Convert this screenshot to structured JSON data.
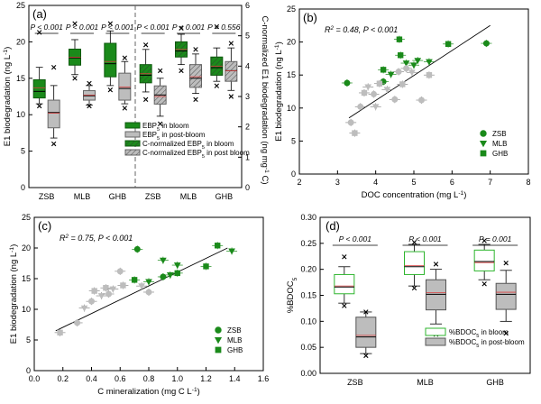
{
  "colors": {
    "green_dark": "#1a8a1a",
    "green_light": "#2db52d",
    "grey": "#bdbdbd",
    "grey_dark": "#8a8a8a",
    "median_red": "#d94040",
    "axis": "#000000"
  },
  "chart_data": [
    {
      "id": "a",
      "panel_label": "(a)",
      "type": "box",
      "ylabel": "E1 biodegradation (ng L-1)",
      "y2label": "C-normalized E1 biodegradation (ng mg-1 C)",
      "ylim": [
        0,
        25
      ],
      "yticks": [
        0,
        5,
        10,
        15,
        20,
        25
      ],
      "y2lim": [
        0,
        6
      ],
      "y2ticks": [
        0,
        1,
        2,
        3,
        4,
        5,
        6
      ],
      "groups": [
        "ZSB",
        "MLB",
        "GHB",
        "ZSB",
        "MLB",
        "GHB"
      ],
      "pvalues": [
        "P < 0.001",
        "P < 0.001",
        "P < 0.001",
        "P < 0.001",
        "P < 0.001",
        "P = 0.556"
      ],
      "legend": [
        "EBP5 in bloom",
        "EBP5 in post-bloom",
        "C-normalized EBP5 in bloom",
        "C-normalized EBP5 in post bloom"
      ],
      "series": [
        {
          "name": "EBP5 in bloom",
          "group_index": [
            0,
            1,
            2
          ],
          "boxes": [
            {
              "q1": 12.3,
              "median": 13.2,
              "q3": 14.8,
              "wlo": 11.5,
              "whi": 16.5,
              "mean": 13.7,
              "out": [
                11.2,
                21.3
              ]
            },
            {
              "q1": 16.8,
              "median": 17.8,
              "q3": 19.0,
              "wlo": 15.5,
              "whi": 20.3,
              "mean": 17.9,
              "out": [
                15.0,
                22.5
              ]
            },
            {
              "q1": 15.2,
              "median": 17.0,
              "q3": 19.8,
              "wlo": 14.0,
              "whi": 21.5,
              "mean": 17.3,
              "out": [
                13.4,
                22.5
              ]
            }
          ]
        },
        {
          "name": "EBP5 in post-bloom",
          "group_index": [
            0,
            1,
            2
          ],
          "boxes": [
            {
              "q1": 8.2,
              "median": 10.3,
              "q3": 12.0,
              "wlo": 6.8,
              "whi": 14.0,
              "mean": 10.2,
              "out": [
                6.0,
                16.5
              ]
            },
            {
              "q1": 12.0,
              "median": 12.6,
              "q3": 13.3,
              "wlo": 11.3,
              "whi": 14.0,
              "mean": 12.7,
              "out": [
                11.2,
                14.3
              ]
            },
            {
              "q1": 12.0,
              "median": 13.6,
              "q3": 15.7,
              "wlo": 11.5,
              "whi": 17.3,
              "mean": 13.8,
              "out": [
                10.9,
                17.8
              ]
            }
          ]
        },
        {
          "name": "C-normalized EBP5 in bloom",
          "group_index": [
            3,
            4,
            5
          ],
          "boxes": [
            {
              "q1": 3.45,
              "median": 3.7,
              "q3": 4.05,
              "wlo": 3.15,
              "whi": 4.55,
              "mean": 3.75,
              "out": [
                2.9,
                4.7
              ]
            },
            {
              "q1": 4.3,
              "median": 4.5,
              "q3": 4.8,
              "wlo": 4.05,
              "whi": 5.05,
              "mean": 4.55,
              "out": [
                3.85,
                5.25
              ]
            },
            {
              "q1": 3.7,
              "median": 3.95,
              "q3": 4.3,
              "wlo": 3.5,
              "whi": 4.6,
              "mean": 4.0,
              "out": [
                3.35,
                5.3
              ]
            }
          ]
        },
        {
          "name": "C-normalized EBP5 in post bloom",
          "group_index": [
            3,
            4,
            5
          ],
          "boxes": [
            {
              "q1": 2.75,
              "median": 3.05,
              "q3": 3.35,
              "wlo": 2.35,
              "whi": 3.6,
              "mean": 3.0,
              "out": [
                2.1,
                3.85
              ]
            },
            {
              "q1": 3.3,
              "median": 3.6,
              "q3": 4.05,
              "wlo": 3.1,
              "whi": 4.4,
              "mean": 3.65,
              "out": [
                2.9,
                4.55
              ]
            },
            {
              "q1": 3.5,
              "median": 3.85,
              "q3": 4.15,
              "wlo": 3.2,
              "whi": 4.6,
              "mean": 3.85,
              "out": [
                3.0,
                4.75
              ]
            }
          ]
        }
      ]
    },
    {
      "id": "b",
      "panel_label": "(b)",
      "type": "scatter",
      "xlabel": "DOC concentration (mg L-1)",
      "ylabel": "E1 biodegradation (ng L-1)",
      "xlim": [
        2,
        8
      ],
      "xticks": [
        2,
        3,
        4,
        5,
        6,
        7,
        8
      ],
      "ylim": [
        0,
        25
      ],
      "yticks": [
        0,
        5,
        10,
        15,
        20,
        25
      ],
      "annotation": "R2 = 0.48, P < 0.001",
      "fit_line": {
        "x": [
          3.3,
          7.0
        ],
        "y": [
          8.5,
          22.5
        ]
      },
      "legend": [
        "ZSB",
        "MLB",
        "GHB"
      ],
      "points": [
        {
          "x": 3.25,
          "y": 13.8,
          "s": "ZSB",
          "bloom": true
        },
        {
          "x": 4.2,
          "y": 14.0,
          "s": "ZSB",
          "bloom": true
        },
        {
          "x": 4.65,
          "y": 18.0,
          "s": "GHB",
          "bloom": true
        },
        {
          "x": 4.62,
          "y": 20.4,
          "s": "GHB",
          "bloom": true
        },
        {
          "x": 4.8,
          "y": 16.8,
          "s": "MLB",
          "bloom": true
        },
        {
          "x": 5.0,
          "y": 16.5,
          "s": "MLB",
          "bloom": true
        },
        {
          "x": 5.1,
          "y": 17.2,
          "s": "MLB",
          "bloom": true
        },
        {
          "x": 5.4,
          "y": 17.0,
          "s": "MLB",
          "bloom": true
        },
        {
          "x": 5.9,
          "y": 19.7,
          "s": "GHB",
          "bloom": true
        },
        {
          "x": 6.9,
          "y": 19.8,
          "s": "ZSB",
          "bloom": true
        },
        {
          "x": 4.2,
          "y": 15.8,
          "s": "GHB",
          "bloom": true
        },
        {
          "x": 4.4,
          "y": 15.1,
          "s": "MLB",
          "bloom": true
        },
        {
          "x": 3.35,
          "y": 7.8,
          "s": "ZSB",
          "bloom": false
        },
        {
          "x": 3.45,
          "y": 6.2,
          "s": "GHB",
          "bloom": false
        },
        {
          "x": 3.6,
          "y": 10.2,
          "s": "ZSB",
          "bloom": false
        },
        {
          "x": 3.7,
          "y": 12.3,
          "s": "GHB",
          "bloom": false
        },
        {
          "x": 3.8,
          "y": 13.2,
          "s": "MLB",
          "bloom": false
        },
        {
          "x": 3.95,
          "y": 12.1,
          "s": "ZSB",
          "bloom": false
        },
        {
          "x": 4.0,
          "y": 10.2,
          "s": "MLB",
          "bloom": false
        },
        {
          "x": 4.1,
          "y": 13.7,
          "s": "GHB",
          "bloom": false
        },
        {
          "x": 4.3,
          "y": 12.8,
          "s": "MLB",
          "bloom": false
        },
        {
          "x": 4.5,
          "y": 11.3,
          "s": "ZSB",
          "bloom": false
        },
        {
          "x": 4.6,
          "y": 15.5,
          "s": "ZSB",
          "bloom": false
        },
        {
          "x": 4.7,
          "y": 13.6,
          "s": "GHB",
          "bloom": false
        },
        {
          "x": 4.8,
          "y": 16.0,
          "s": "ZSB",
          "bloom": false
        },
        {
          "x": 4.95,
          "y": 15.4,
          "s": "MLB",
          "bloom": false
        },
        {
          "x": 5.2,
          "y": 11.2,
          "s": "ZSB",
          "bloom": false
        },
        {
          "x": 5.4,
          "y": 15.0,
          "s": "GHB",
          "bloom": false
        }
      ]
    },
    {
      "id": "c",
      "panel_label": "(c)",
      "type": "scatter",
      "xlabel": "C mineralization (mg C L-1)",
      "ylabel": "E1 biodegradation (ng L-1)",
      "xlim": [
        0.0,
        1.6
      ],
      "xticks": [
        0.0,
        0.2,
        0.4,
        0.6,
        0.8,
        1.0,
        1.2,
        1.4,
        1.6
      ],
      "ylim": [
        0,
        25
      ],
      "yticks": [
        0,
        5,
        10,
        15,
        20,
        25
      ],
      "annotation": "R2 = 0.75, P < 0.001",
      "fit_line": {
        "x": [
          0.15,
          1.35
        ],
        "y": [
          6.5,
          20.0
        ]
      },
      "legend": [
        "ZSB",
        "MLB",
        "GHB"
      ],
      "points": [
        {
          "x": 0.18,
          "y": 6.2,
          "s": "GHB",
          "bloom": false
        },
        {
          "x": 0.3,
          "y": 7.8,
          "s": "ZSB",
          "bloom": false
        },
        {
          "x": 0.35,
          "y": 10.2,
          "s": "MLB",
          "bloom": false
        },
        {
          "x": 0.4,
          "y": 11.3,
          "s": "ZSB",
          "bloom": false
        },
        {
          "x": 0.42,
          "y": 13.0,
          "s": "GHB",
          "bloom": false
        },
        {
          "x": 0.47,
          "y": 12.2,
          "s": "MLB",
          "bloom": false
        },
        {
          "x": 0.5,
          "y": 13.5,
          "s": "GHB",
          "bloom": false
        },
        {
          "x": 0.52,
          "y": 12.5,
          "s": "ZSB",
          "bloom": false
        },
        {
          "x": 0.55,
          "y": 13.3,
          "s": "MLB",
          "bloom": false
        },
        {
          "x": 0.6,
          "y": 16.2,
          "s": "ZSB",
          "bloom": false
        },
        {
          "x": 0.62,
          "y": 13.9,
          "s": "GHB",
          "bloom": false
        },
        {
          "x": 0.75,
          "y": 13.8,
          "s": "MLB",
          "bloom": false
        },
        {
          "x": 0.8,
          "y": 12.8,
          "s": "ZSB",
          "bloom": false
        },
        {
          "x": 0.7,
          "y": 14.8,
          "s": "GHB",
          "bloom": true
        },
        {
          "x": 0.72,
          "y": 19.8,
          "s": "ZSB",
          "bloom": true
        },
        {
          "x": 0.8,
          "y": 14.5,
          "s": "MLB",
          "bloom": true
        },
        {
          "x": 0.9,
          "y": 15.3,
          "s": "ZSB",
          "bloom": true
        },
        {
          "x": 0.95,
          "y": 15.6,
          "s": "MLB",
          "bloom": true
        },
        {
          "x": 0.9,
          "y": 18.0,
          "s": "MLB",
          "bloom": true
        },
        {
          "x": 1.0,
          "y": 17.2,
          "s": "MLB",
          "bloom": true
        },
        {
          "x": 1.0,
          "y": 15.9,
          "s": "GHB",
          "bloom": true
        },
        {
          "x": 1.2,
          "y": 17.0,
          "s": "GHB",
          "bloom": true
        },
        {
          "x": 1.28,
          "y": 20.4,
          "s": "GHB",
          "bloom": true
        },
        {
          "x": 1.38,
          "y": 19.5,
          "s": "MLB",
          "bloom": true
        }
      ]
    },
    {
      "id": "d",
      "panel_label": "(d)",
      "type": "box",
      "ylabel": "%BDOC5",
      "ylim": [
        0.0,
        0.3
      ],
      "yticks": [
        0.0,
        0.05,
        0.1,
        0.15,
        0.2,
        0.25,
        0.3
      ],
      "groups": [
        "ZSB",
        "MLB",
        "GHB"
      ],
      "pvalues": [
        "P < 0.001",
        "P < 0.001",
        "P = 0.001"
      ],
      "legend": [
        "%BDOC5 in bloom",
        "%BDOC5 in post-bloom"
      ],
      "series": [
        {
          "name": "%BDOC5 in bloom",
          "boxes": [
            {
              "q1": 0.153,
              "median": 0.166,
              "q3": 0.19,
              "wlo": 0.135,
              "whi": 0.205,
              "mean": 0.168,
              "out": [
                0.13,
                0.224
              ]
            },
            {
              "q1": 0.19,
              "median": 0.205,
              "q3": 0.234,
              "wlo": 0.168,
              "whi": 0.248,
              "mean": 0.207,
              "out": [
                0.164,
                0.252
              ]
            },
            {
              "q1": 0.197,
              "median": 0.215,
              "q3": 0.237,
              "wlo": 0.18,
              "whi": 0.248,
              "mean": 0.213,
              "out": [
                0.172,
                0.255
              ]
            }
          ]
        },
        {
          "name": "%BDOC5 in post-bloom",
          "boxes": [
            {
              "q1": 0.05,
              "median": 0.07,
              "q3": 0.108,
              "wlo": 0.038,
              "whi": 0.118,
              "mean": 0.073,
              "out": [
                0.034,
                0.118
              ]
            },
            {
              "q1": 0.122,
              "median": 0.152,
              "q3": 0.18,
              "wlo": 0.095,
              "whi": 0.2,
              "mean": 0.155,
              "out": [
                0.075,
                0.21
              ]
            },
            {
              "q1": 0.123,
              "median": 0.152,
              "q3": 0.173,
              "wlo": 0.1,
              "whi": 0.198,
              "mean": 0.156,
              "out": [
                0.077,
                0.212
              ]
            }
          ]
        }
      ]
    }
  ]
}
